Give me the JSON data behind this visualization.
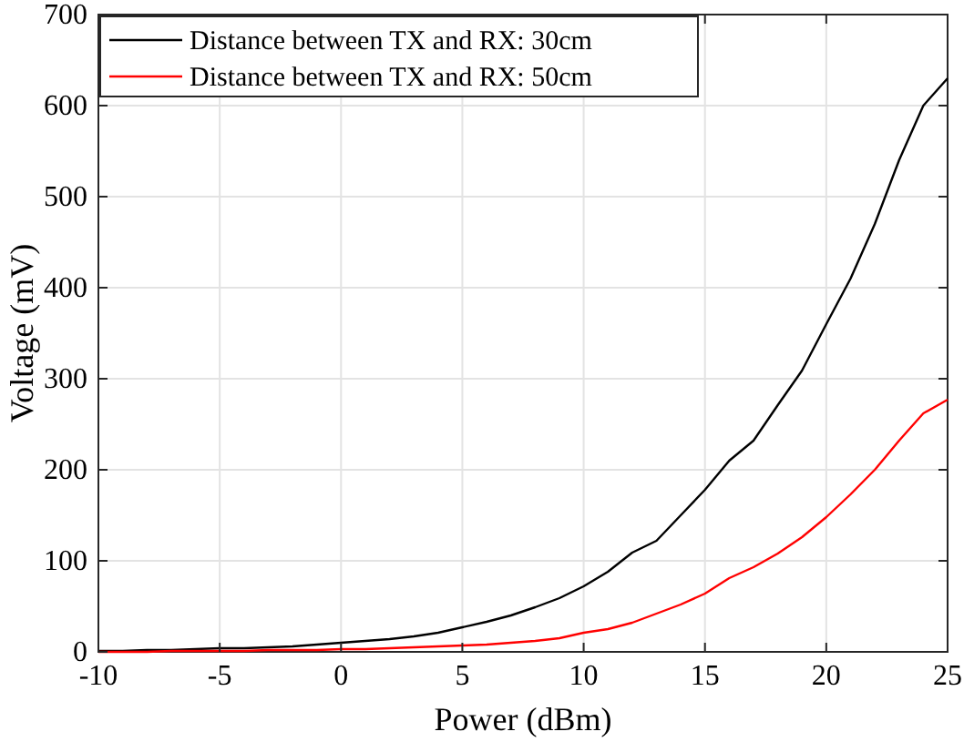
{
  "chart_data": {
    "type": "line",
    "xlabel": "Power (dBm)",
    "ylabel": "Voltage (mV)",
    "x": [
      -10,
      -9,
      -8,
      -7,
      -6,
      -5,
      -4,
      -3,
      -2,
      -1,
      0,
      1,
      2,
      3,
      4,
      5,
      6,
      7,
      8,
      9,
      10,
      11,
      12,
      13,
      14,
      15,
      16,
      17,
      18,
      19,
      20,
      21,
      22,
      23,
      24,
      25
    ],
    "series": [
      {
        "name": "Distance between TX and RX: 30cm",
        "color": "#000000",
        "values": [
          1,
          1,
          2,
          2,
          3,
          4,
          4,
          5,
          6,
          8,
          10,
          12,
          14,
          17,
          21,
          27,
          33,
          40,
          49,
          59,
          72,
          88,
          109,
          122,
          150,
          178,
          210,
          232,
          271,
          309,
          360,
          410,
          470,
          540,
          600,
          630
        ]
      },
      {
        "name": "Distance between TX and RX: 50cm",
        "color": "#ff0000",
        "values": [
          0,
          0,
          0,
          1,
          1,
          1,
          1,
          2,
          2,
          2,
          3,
          3,
          4,
          5,
          6,
          7,
          8,
          10,
          12,
          15,
          21,
          25,
          32,
          42,
          52,
          64,
          81,
          93,
          108,
          126,
          148,
          173,
          200,
          232,
          262,
          277
        ]
      }
    ],
    "xlim": [
      -10,
      25
    ],
    "xticks": [
      -10,
      -5,
      0,
      5,
      10,
      15,
      20,
      25
    ],
    "ylim": [
      0,
      700
    ],
    "yticks": [
      0,
      100,
      200,
      300,
      400,
      500,
      600,
      700
    ],
    "grid": true,
    "legend": "top left",
    "line_style": "solid",
    "marker": "none"
  }
}
